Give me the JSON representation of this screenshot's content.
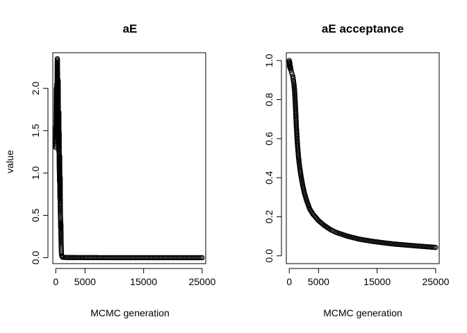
{
  "chart_data": [
    {
      "type": "scatter",
      "title": "aE",
      "xlabel": "MCMC generation",
      "ylabel": "value",
      "xlim": [
        -500,
        25600
      ],
      "ylim": [
        -0.07,
        2.42
      ],
      "xticks": [
        0,
        5000,
        15000,
        25000
      ],
      "xtick_labels": [
        "0",
        "5000",
        "15000",
        "25000"
      ],
      "yticks": [
        0.0,
        0.5,
        1.0,
        1.5,
        2.0
      ],
      "ytick_labels": [
        "0.0",
        "0.5",
        "1.0",
        "1.5",
        "2.0"
      ],
      "marker": "open-circle",
      "series": [
        {
          "points": [
            [
              0,
              1.3
            ],
            [
              25,
              1.55
            ],
            [
              50,
              1.42
            ],
            [
              75,
              1.75
            ],
            [
              100,
              2.0
            ],
            [
              125,
              1.8
            ],
            [
              150,
              1.88
            ],
            [
              175,
              2.05
            ],
            [
              200,
              1.65
            ],
            [
              225,
              1.52
            ],
            [
              250,
              2.25
            ],
            [
              275,
              2.35
            ],
            [
              300,
              2.18
            ],
            [
              325,
              1.95
            ],
            [
              350,
              1.7
            ],
            [
              375,
              1.6
            ],
            [
              400,
              2.1
            ],
            [
              425,
              1.85
            ],
            [
              450,
              1.45
            ],
            [
              475,
              1.35
            ],
            [
              500,
              1.6
            ],
            [
              525,
              1.72
            ],
            [
              550,
              1.25
            ],
            [
              575,
              1.48
            ],
            [
              600,
              1.1
            ],
            [
              625,
              1.0
            ],
            [
              650,
              0.9
            ],
            [
              675,
              1.2
            ],
            [
              700,
              0.8
            ],
            [
              725,
              0.7
            ],
            [
              750,
              0.95
            ],
            [
              775,
              0.6
            ],
            [
              800,
              0.5
            ],
            [
              825,
              0.45
            ],
            [
              850,
              0.35
            ],
            [
              875,
              0.4
            ],
            [
              900,
              0.25
            ],
            [
              925,
              0.15
            ],
            [
              950,
              0.1
            ],
            [
              975,
              0.05
            ],
            [
              1000,
              0.03
            ],
            [
              1050,
              0.02
            ],
            [
              1100,
              0.01
            ],
            [
              1200,
              0.005
            ],
            [
              2000,
              0.002
            ],
            [
              5000,
              0.001
            ],
            [
              10000,
              0.0
            ],
            [
              15000,
              0.0
            ],
            [
              20000,
              0.0
            ],
            [
              25000,
              0.0
            ]
          ]
        }
      ]
    },
    {
      "type": "scatter",
      "title": "aE acceptance",
      "xlabel": "MCMC generation",
      "ylabel": "",
      "xlim": [
        -500,
        25600
      ],
      "ylim": [
        -0.04,
        1.04
      ],
      "xticks": [
        0,
        5000,
        15000,
        25000
      ],
      "xtick_labels": [
        "0",
        "5000",
        "15000",
        "25000"
      ],
      "yticks": [
        0.0,
        0.2,
        0.4,
        0.6,
        0.8,
        1.0
      ],
      "ytick_labels": [
        "0.0",
        "0.2",
        "0.4",
        "0.6",
        "0.8",
        "1.0"
      ],
      "marker": "open-circle",
      "series": [
        {
          "points": [
            [
              0,
              1.0
            ],
            [
              50,
              0.97
            ],
            [
              100,
              0.99
            ],
            [
              150,
              0.96
            ],
            [
              200,
              0.97
            ],
            [
              300,
              0.95
            ],
            [
              400,
              0.94
            ],
            [
              500,
              0.93
            ],
            [
              600,
              0.92
            ],
            [
              700,
              0.9
            ],
            [
              800,
              0.88
            ],
            [
              900,
              0.85
            ],
            [
              1000,
              0.8
            ],
            [
              1100,
              0.74
            ],
            [
              1200,
              0.67
            ],
            [
              1400,
              0.57
            ],
            [
              1600,
              0.5
            ],
            [
              1800,
              0.45
            ],
            [
              2000,
              0.41
            ],
            [
              2300,
              0.36
            ],
            [
              2600,
              0.32
            ],
            [
              3000,
              0.28
            ],
            [
              3500,
              0.24
            ],
            [
              4000,
              0.215
            ],
            [
              5000,
              0.18
            ],
            [
              6000,
              0.155
            ],
            [
              7000,
              0.135
            ],
            [
              8000,
              0.12
            ],
            [
              9000,
              0.11
            ],
            [
              10000,
              0.1
            ],
            [
              12000,
              0.085
            ],
            [
              14000,
              0.075
            ],
            [
              16000,
              0.067
            ],
            [
              18000,
              0.06
            ],
            [
              20000,
              0.055
            ],
            [
              22000,
              0.05
            ],
            [
              25000,
              0.043
            ]
          ]
        }
      ]
    }
  ]
}
